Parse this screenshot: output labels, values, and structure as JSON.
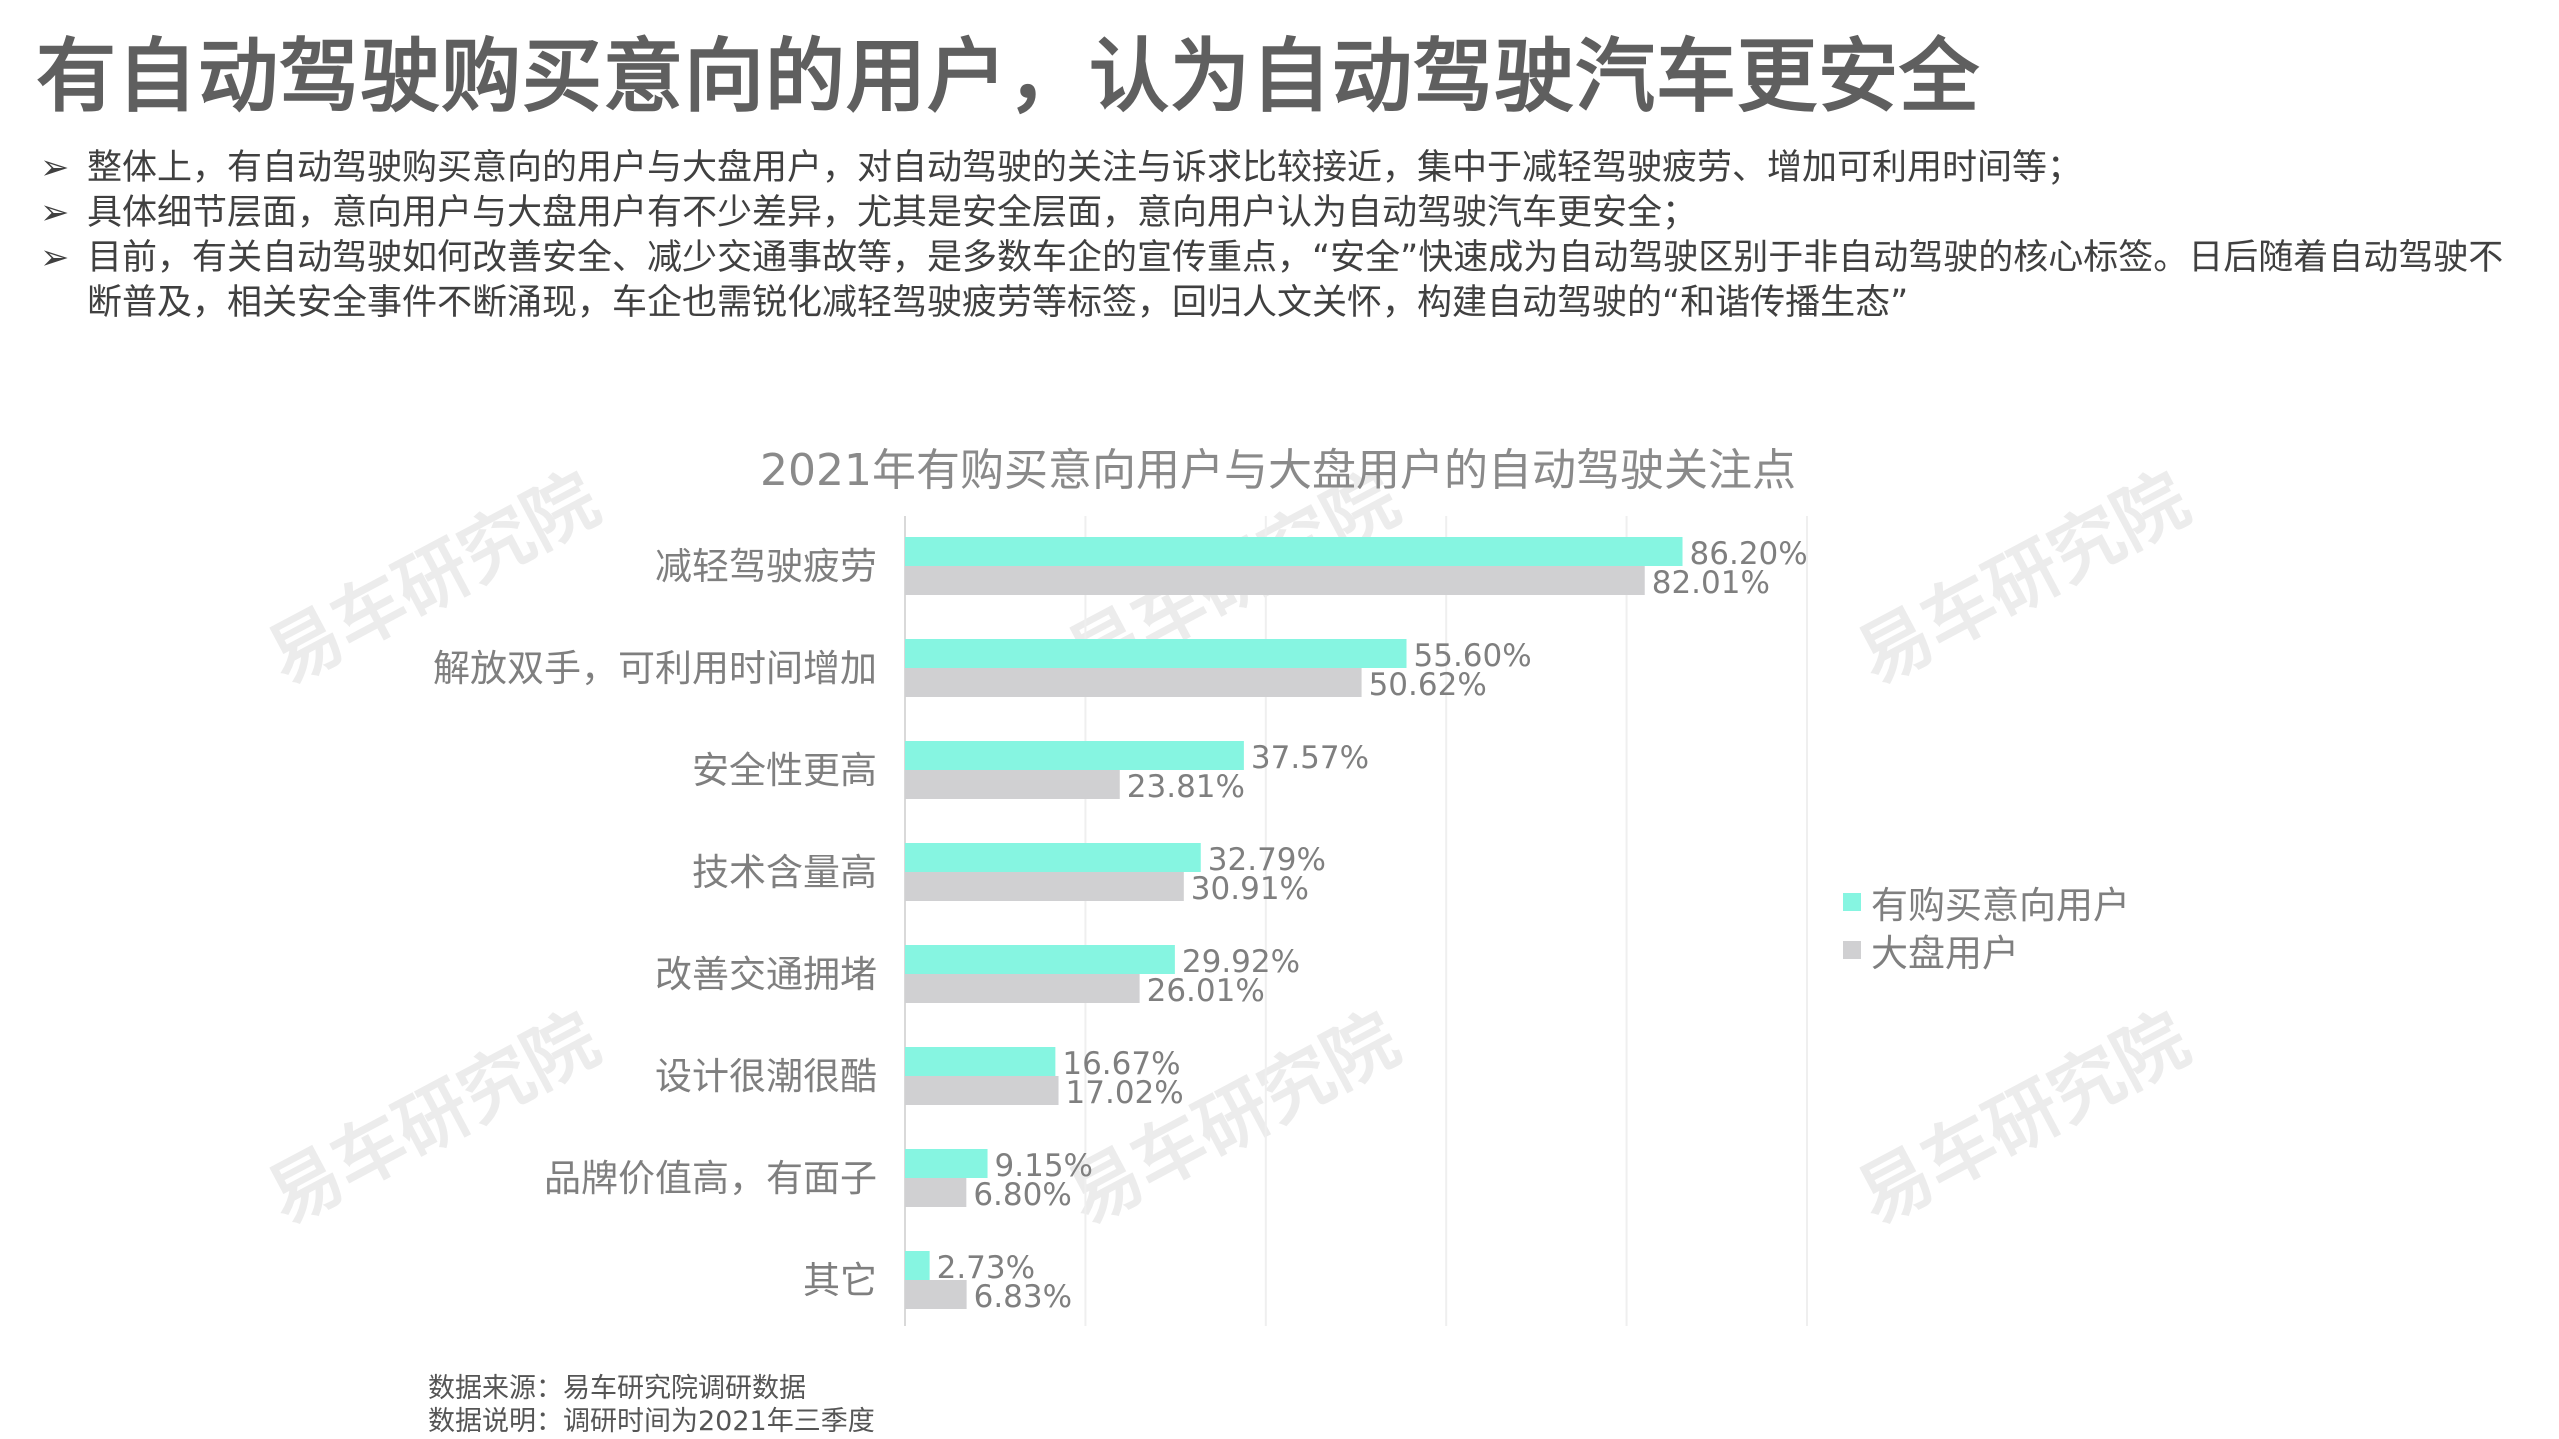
{
  "title": "有自动驾驶购买意向的用户，认为自动驾驶汽车更安全",
  "bullets": [
    "整体上，有自动驾驶购买意向的用户与大盘用户，对自动驾驶的关注与诉求比较接近，集中于减轻驾驶疲劳、增加可利用时间等；",
    "具体细节层面，意向用户与大盘用户有不少差异，尤其是安全层面，意向用户认为自动驾驶汽车更安全；",
    "目前，有关自动驾驶如何改善安全、减少交通事故等，是多数车企的宣传重点，“安全”快速成为自动驾驶区别于非自动驾驶的核心标签。日后随着自动驾驶不断普及，相关安全事件不断涌现，车企也需锐化减轻驾驶疲劳等标签，回归人文关怀，构建自动驾驶的“和谐传播生态”"
  ],
  "bullet_marker": "➢",
  "watermark": "易车研究院",
  "chart_data": {
    "type": "bar",
    "orientation": "horizontal",
    "title": "2021年有购买意向用户与大盘用户的自动驾驶关注点",
    "categories": [
      "减轻驾驶疲劳",
      "解放双手，可利用时间增加",
      "安全性更高",
      "技术含量高",
      "改善交通拥堵",
      "设计很潮很酷",
      "品牌价值高，有面子",
      "其它"
    ],
    "series": [
      {
        "name": "有购买意向用户",
        "color": "#86f5e1",
        "values": [
          86.2,
          55.6,
          37.57,
          32.79,
          29.92,
          16.67,
          9.15,
          2.73
        ],
        "labels": [
          "86.20%",
          "55.60%",
          "37.57%",
          "32.79%",
          "29.92%",
          "16.67%",
          "9.15%",
          "2.73%"
        ]
      },
      {
        "name": "大盘用户",
        "color": "#d0d0d2",
        "values": [
          82.01,
          50.62,
          23.81,
          30.91,
          26.01,
          17.02,
          6.8,
          6.83
        ],
        "labels": [
          "82.01%",
          "50.62%",
          "23.81%",
          "30.91%",
          "26.01%",
          "17.02%",
          "6.80%",
          "6.83%"
        ]
      }
    ],
    "xlim": [
      0,
      100
    ],
    "unit": "%",
    "grid": true,
    "legend_position": "right"
  },
  "footer": {
    "source": "数据来源：易车研究院调研数据",
    "note": "数据说明：调研时间为2021年三季度"
  }
}
